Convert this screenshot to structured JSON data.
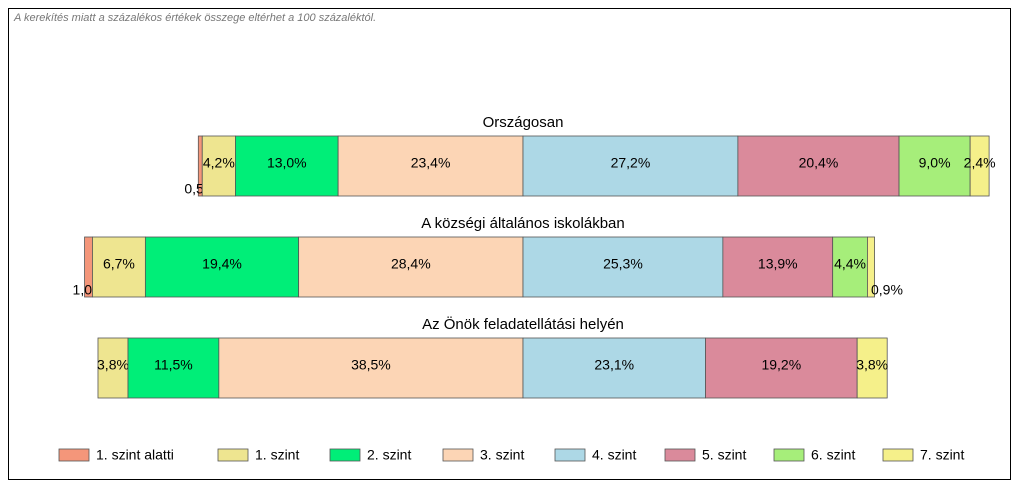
{
  "chart_data": {
    "type": "diverging-bar",
    "subtitle": "A kerekítés miatt a  százalékos értékek összege eltérhet a 100 százaléktól.",
    "categories": [
      "Országosan",
      "A községi általános iskolákban",
      "Az Önök feladatellátási helyén"
    ],
    "center_after": 3,
    "series": [
      {
        "name": "1. szint alatti",
        "color": "#F4967A",
        "values": [
          0.5,
          1.0,
          null
        ],
        "value_labels": [
          "0,5%",
          "1,0%",
          null
        ]
      },
      {
        "name": "1. szint",
        "color": "#EEE590",
        "values": [
          4.2,
          6.7,
          3.8
        ],
        "value_labels": [
          "4,2%",
          "6,7%",
          "3,8%"
        ]
      },
      {
        "name": "2. szint",
        "color": "#00EE78",
        "values": [
          13.0,
          19.4,
          11.5
        ],
        "value_labels": [
          "13,0%",
          "19,4%",
          "11,5%"
        ]
      },
      {
        "name": "3. szint",
        "color": "#FCD5B5",
        "values": [
          23.4,
          28.4,
          38.5
        ],
        "value_labels": [
          "23,4%",
          "28,4%",
          "38,5%"
        ]
      },
      {
        "name": "4. szint",
        "color": "#ADD8E6",
        "values": [
          27.2,
          25.3,
          23.1
        ],
        "value_labels": [
          "27,2%",
          "25,3%",
          "23,1%"
        ]
      },
      {
        "name": "5. szint",
        "color": "#DA8A9B",
        "values": [
          20.4,
          13.9,
          19.2
        ],
        "value_labels": [
          "20,4%",
          "13,9%",
          "19,2%"
        ]
      },
      {
        "name": "6. szint",
        "color": "#A6EE7A",
        "values": [
          9.0,
          4.4,
          null
        ],
        "value_labels": [
          "9,0%",
          "4,4%",
          null
        ]
      },
      {
        "name": "7. szint",
        "color": "#F5F08A",
        "values": [
          2.4,
          0.9,
          3.8
        ],
        "value_labels": [
          "2,4%",
          "0,9%",
          "3,8%"
        ]
      }
    ]
  }
}
